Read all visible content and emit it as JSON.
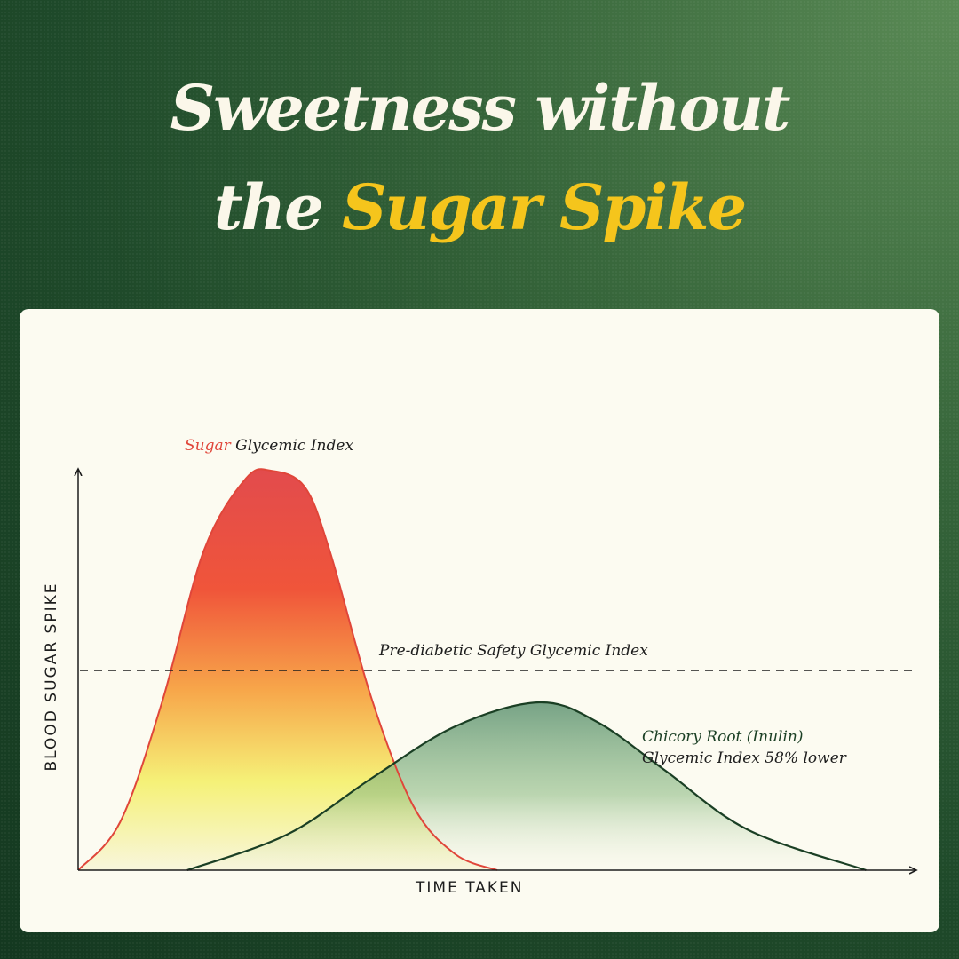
{
  "title": {
    "line1": "Sweetness without",
    "line2_prefix": "the ",
    "line2_highlight": "Sugar Spike"
  },
  "colors": {
    "highlight": "#f5c51c",
    "sugar_accent": "#e0463a",
    "chicory_accent": "#1a3f24"
  },
  "chart_data": {
    "type": "area",
    "xlabel": "TIME TAKEN",
    "ylabel": "BLOOD SUGAR SPIKE",
    "xlim": [
      0,
      100
    ],
    "ylim": [
      0,
      100
    ],
    "grid": false,
    "legend": "none",
    "threshold": {
      "label": "Pre-diabetic Safety Glycemic Index",
      "value": 50
    },
    "series": [
      {
        "name_highlight": "Sugar",
        "name_rest": "Glycemic Index",
        "x": [
          0,
          5,
          10,
          15,
          20,
          23,
          27,
          30,
          35,
          40,
          45,
          50
        ],
        "y": [
          0,
          12,
          42,
          80,
          98,
          100,
          96,
          80,
          43,
          16,
          4,
          0
        ]
      },
      {
        "name": "Chicory Root (Inulin)",
        "name_rest": "Glycemic Index 58% lower",
        "x": [
          13,
          25,
          35,
          45,
          55,
          62,
          70,
          80,
          94
        ],
        "y": [
          0,
          9,
          23,
          36,
          42,
          37,
          25,
          10,
          0
        ]
      }
    ]
  }
}
